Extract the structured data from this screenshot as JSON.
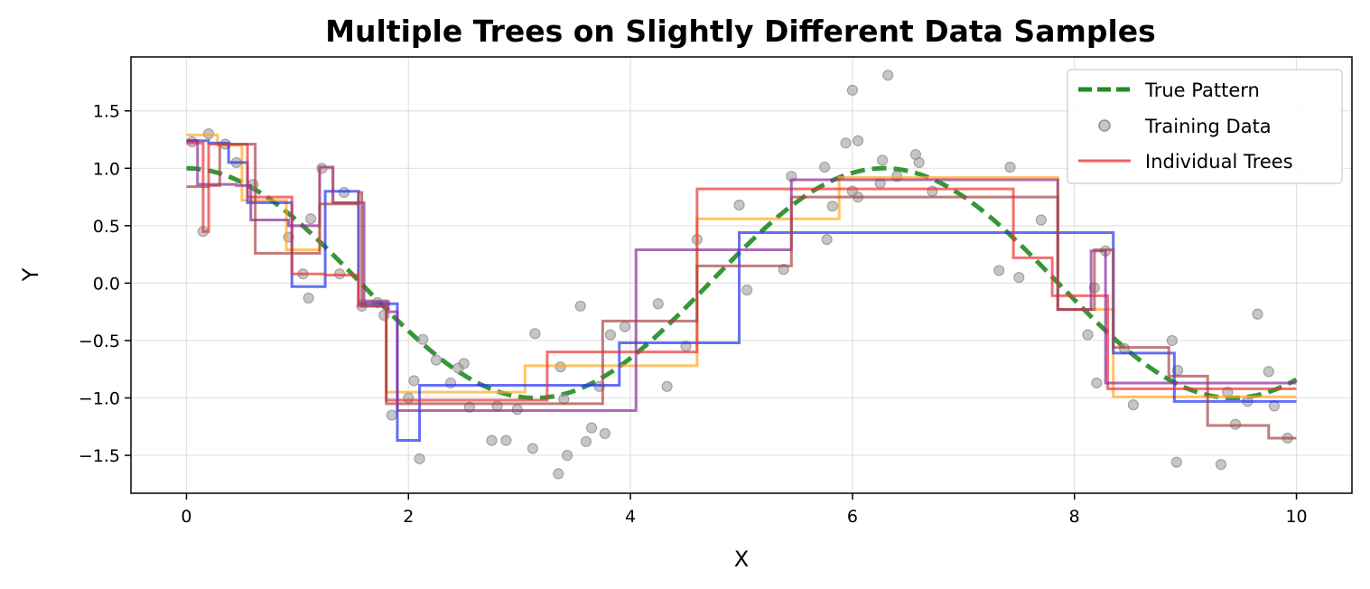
{
  "chart_data": {
    "type": "line",
    "title": "Multiple Trees on Slightly Different Data Samples",
    "xlabel": "X",
    "ylabel": "Y",
    "xlim": [
      -0.5,
      10.5
    ],
    "ylim": [
      -1.83,
      1.97
    ],
    "xticks": [
      0,
      2,
      4,
      6,
      8,
      10
    ],
    "yticks": [
      -1.5,
      -1.0,
      -0.5,
      0.0,
      0.5,
      1.0,
      1.5
    ],
    "xtick_labels": [
      "0",
      "2",
      "4",
      "6",
      "8",
      "10"
    ],
    "ytick_labels": [
      "−1.5",
      "−1.0",
      "−0.5",
      "0.0",
      "0.5",
      "1.0",
      "1.5"
    ],
    "grid": true,
    "legend_position": "top-right",
    "legend": [
      {
        "label": "True Pattern",
        "kind": "dashed-line",
        "color": "#228b22"
      },
      {
        "label": "Training Data",
        "kind": "marker",
        "color": "#a0a0a0"
      },
      {
        "label": "Individual Trees",
        "kind": "line",
        "color": "#ee4444"
      }
    ],
    "true_pattern": {
      "function": "cos",
      "x_range": [
        0,
        10
      ],
      "color": "#228b22"
    },
    "training_data": {
      "color": "#a0a0a0",
      "points": [
        [
          0.05,
          1.23
        ],
        [
          0.15,
          0.45
        ],
        [
          0.2,
          1.3
        ],
        [
          0.35,
          1.21
        ],
        [
          0.45,
          1.05
        ],
        [
          0.6,
          0.86
        ],
        [
          0.92,
          0.4
        ],
        [
          1.05,
          0.08
        ],
        [
          1.1,
          -0.13
        ],
        [
          1.12,
          0.56
        ],
        [
          1.22,
          1.0
        ],
        [
          1.38,
          0.08
        ],
        [
          1.42,
          0.79
        ],
        [
          1.58,
          -0.2
        ],
        [
          1.72,
          -0.17
        ],
        [
          1.78,
          -0.28
        ],
        [
          1.85,
          -1.15
        ],
        [
          2.0,
          -1.0
        ],
        [
          2.05,
          -0.85
        ],
        [
          2.1,
          -1.53
        ],
        [
          2.13,
          -0.49
        ],
        [
          2.25,
          -0.67
        ],
        [
          2.38,
          -0.87
        ],
        [
          2.45,
          -0.74
        ],
        [
          2.5,
          -0.7
        ],
        [
          2.55,
          -1.08
        ],
        [
          2.75,
          -1.37
        ],
        [
          2.8,
          -1.07
        ],
        [
          2.88,
          -1.37
        ],
        [
          2.98,
          -1.1
        ],
        [
          3.12,
          -1.44
        ],
        [
          3.14,
          -0.44
        ],
        [
          3.35,
          -1.66
        ],
        [
          3.37,
          -0.73
        ],
        [
          3.4,
          -1.01
        ],
        [
          3.43,
          -1.5
        ],
        [
          3.55,
          -0.2
        ],
        [
          3.6,
          -1.38
        ],
        [
          3.65,
          -1.26
        ],
        [
          3.72,
          -0.9
        ],
        [
          3.77,
          -1.31
        ],
        [
          3.82,
          -0.45
        ],
        [
          3.95,
          -0.38
        ],
        [
          4.25,
          -0.18
        ],
        [
          4.33,
          -0.9
        ],
        [
          4.5,
          -0.55
        ],
        [
          4.6,
          0.38
        ],
        [
          4.98,
          0.68
        ],
        [
          5.05,
          -0.06
        ],
        [
          5.38,
          0.12
        ],
        [
          5.45,
          0.93
        ],
        [
          5.75,
          1.01
        ],
        [
          5.77,
          0.38
        ],
        [
          5.82,
          0.67
        ],
        [
          5.94,
          1.22
        ],
        [
          6.0,
          0.8
        ],
        [
          6.0,
          1.68
        ],
        [
          6.05,
          0.75
        ],
        [
          6.05,
          1.24
        ],
        [
          6.25,
          0.87
        ],
        [
          6.27,
          1.07
        ],
        [
          6.32,
          1.81
        ],
        [
          6.4,
          0.93
        ],
        [
          6.57,
          1.12
        ],
        [
          6.6,
          1.05
        ],
        [
          6.72,
          0.8
        ],
        [
          7.32,
          0.11
        ],
        [
          7.42,
          1.01
        ],
        [
          7.5,
          0.05
        ],
        [
          7.7,
          0.55
        ],
        [
          8.12,
          -0.45
        ],
        [
          8.18,
          -0.04
        ],
        [
          8.2,
          -0.87
        ],
        [
          8.28,
          0.28
        ],
        [
          8.45,
          -0.57
        ],
        [
          8.53,
          -1.06
        ],
        [
          8.88,
          -0.5
        ],
        [
          8.92,
          -1.56
        ],
        [
          8.93,
          -0.76
        ],
        [
          9.32,
          -1.58
        ],
        [
          9.38,
          -0.95
        ],
        [
          9.45,
          -1.23
        ],
        [
          9.56,
          -1.03
        ],
        [
          9.65,
          -0.27
        ],
        [
          9.75,
          -0.77
        ],
        [
          9.8,
          -1.07
        ],
        [
          9.92,
          -1.35
        ]
      ]
    },
    "series": [
      {
        "color": "#ffaa22",
        "steps": [
          [
            0,
            1.29
          ],
          [
            0.28,
            1.2
          ],
          [
            0.5,
            0.72
          ],
          [
            0.9,
            0.29
          ],
          [
            1.2,
            1.0
          ],
          [
            1.32,
            0.7
          ],
          [
            1.55,
            -0.15
          ],
          [
            1.8,
            -0.95
          ],
          [
            3.05,
            -0.72
          ],
          [
            3.8,
            -0.72
          ],
          [
            4.6,
            0.56
          ],
          [
            5.88,
            0.92
          ],
          [
            7.85,
            -0.23
          ],
          [
            8.35,
            -0.99
          ],
          [
            10,
            -0.99
          ]
        ]
      },
      {
        "color": "#2233ee",
        "steps": [
          [
            0,
            1.24
          ],
          [
            0.2,
            1.22
          ],
          [
            0.38,
            1.05
          ],
          [
            0.55,
            0.7
          ],
          [
            0.95,
            -0.03
          ],
          [
            1.25,
            0.8
          ],
          [
            1.55,
            -0.18
          ],
          [
            1.9,
            -1.37
          ],
          [
            2.1,
            -0.89
          ],
          [
            3.9,
            -0.52
          ],
          [
            4.98,
            0.44
          ],
          [
            8.35,
            -0.61
          ],
          [
            8.9,
            -1.03
          ],
          [
            10,
            -1.03
          ]
        ]
      },
      {
        "color": "#ee3333",
        "steps": [
          [
            0,
            1.22
          ],
          [
            0.15,
            0.45
          ],
          [
            0.2,
            1.21
          ],
          [
            0.55,
            0.75
          ],
          [
            0.95,
            0.08
          ],
          [
            1.25,
            0.07
          ],
          [
            1.55,
            -0.2
          ],
          [
            1.8,
            -1.02
          ],
          [
            3.25,
            -1.02
          ],
          [
            3.25,
            -0.6
          ],
          [
            4.6,
            0.82
          ],
          [
            7.45,
            0.22
          ],
          [
            7.8,
            -0.11
          ],
          [
            8.3,
            -0.92
          ],
          [
            10,
            -0.92
          ]
        ]
      },
      {
        "color": "#8a2b9a",
        "steps": [
          [
            0,
            1.24
          ],
          [
            0.1,
            0.86
          ],
          [
            0.45,
            0.85
          ],
          [
            0.58,
            0.55
          ],
          [
            0.92,
            0.5
          ],
          [
            1.2,
            1.01
          ],
          [
            1.32,
            0.7
          ],
          [
            1.6,
            -0.16
          ],
          [
            1.82,
            -0.25
          ],
          [
            1.9,
            -1.11
          ],
          [
            3.75,
            -1.11
          ],
          [
            4.05,
            0.29
          ],
          [
            5.45,
            0.9
          ],
          [
            7.85,
            -0.23
          ],
          [
            8.15,
            0.28
          ],
          [
            8.28,
            -0.87
          ],
          [
            10,
            -0.87
          ]
        ]
      },
      {
        "color": "#a64545",
        "steps": [
          [
            0,
            0.84
          ],
          [
            0.2,
            0.85
          ],
          [
            0.3,
            1.21
          ],
          [
            0.62,
            0.26
          ],
          [
            0.92,
            0.26
          ],
          [
            1.2,
            0.69
          ],
          [
            1.55,
            0.79
          ],
          [
            1.58,
            -0.2
          ],
          [
            1.8,
            -1.05
          ],
          [
            3.75,
            -0.33
          ],
          [
            4.6,
            0.15
          ],
          [
            5.45,
            0.75
          ],
          [
            7.85,
            -0.23
          ],
          [
            8.18,
            0.29
          ],
          [
            8.35,
            -0.56
          ],
          [
            8.85,
            -0.81
          ],
          [
            9.2,
            -1.24
          ],
          [
            9.75,
            -1.35
          ],
          [
            10,
            -1.35
          ]
        ]
      }
    ]
  }
}
